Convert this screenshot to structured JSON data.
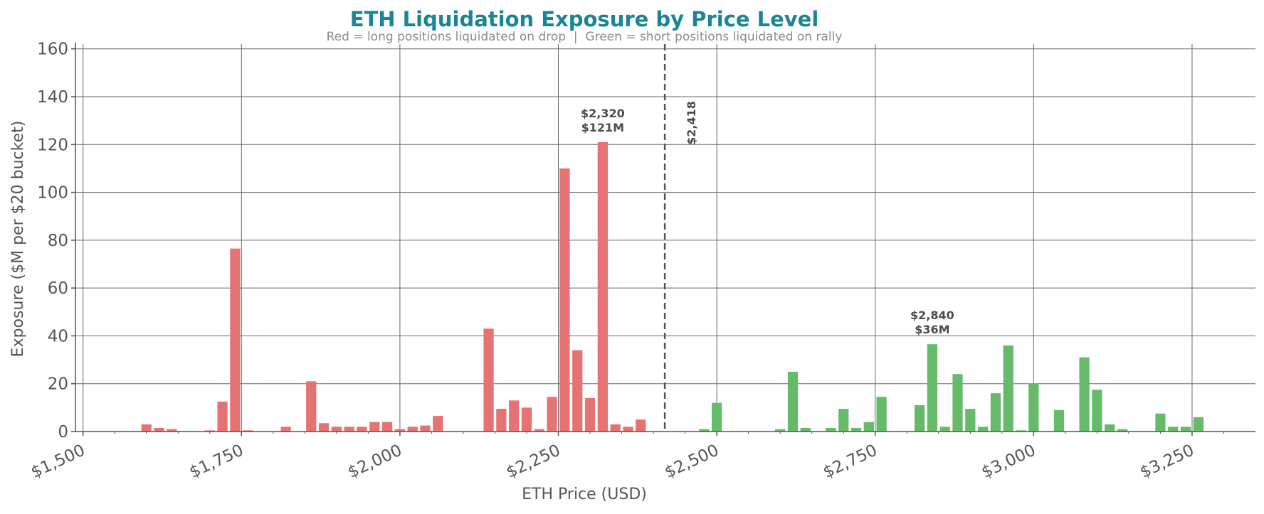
{
  "chart_data": {
    "type": "bar",
    "title": "ETH Liquidation Exposure by Price Level",
    "subtitle": "Red = long positions liquidated on drop  |  Green = short positions liquidated on rally",
    "xlabel": "ETH Price (USD)",
    "ylabel": "Exposure ($M per $20 bucket)",
    "xlim": [
      1488,
      3350
    ],
    "ylim": [
      0,
      162
    ],
    "x_ticks": [
      1500,
      1750,
      2000,
      2250,
      2500,
      2750,
      3000,
      3250
    ],
    "x_tick_labels": [
      "$1,500",
      "$1,750",
      "$2,000",
      "$2,250",
      "$2,500",
      "$2,750",
      "$3,000",
      "$3,250"
    ],
    "y_ticks": [
      0,
      20,
      40,
      60,
      80,
      100,
      120,
      140,
      160
    ],
    "y_tick_labels": [
      "0",
      "20",
      "40",
      "60",
      "80",
      "100",
      "120",
      "140",
      "160"
    ],
    "grid": true,
    "bucket_width": 20,
    "current_price": {
      "value": 2418,
      "label": "$2,418"
    },
    "colors": {
      "long": "#e57373",
      "short": "#66bb6a",
      "title": "#1a8596",
      "current_line": "#555555"
    },
    "series": [
      {
        "side": "long",
        "x": [
          1600,
          1620,
          1640,
          1700,
          1720,
          1740,
          1760,
          1820,
          1860,
          1880,
          1900,
          1920,
          1940,
          1960,
          1980,
          2000,
          2020,
          2040,
          2060,
          2140,
          2160,
          2180,
          2200,
          2220,
          2240,
          2260,
          2280,
          2300,
          2320,
          2340,
          2360,
          2380
        ],
        "values": [
          3,
          1.5,
          1,
          0.5,
          12.5,
          76.5,
          0.5,
          2,
          21,
          3.5,
          2,
          2,
          2,
          4,
          4,
          1,
          2,
          2.5,
          6.5,
          43,
          9.5,
          13,
          10,
          1,
          14.5,
          110,
          34,
          14,
          121,
          3,
          2,
          5
        ]
      },
      {
        "side": "short",
        "x": [
          2480,
          2500,
          2600,
          2620,
          2640,
          2680,
          2700,
          2720,
          2740,
          2760,
          2820,
          2840,
          2860,
          2880,
          2900,
          2920,
          2940,
          2960,
          2980,
          3000,
          3040,
          3080,
          3100,
          3120,
          3140,
          3200,
          3220,
          3240,
          3260
        ],
        "values": [
          1,
          12,
          1,
          25,
          1.5,
          1.5,
          9.5,
          1.5,
          4,
          14.5,
          11,
          36.5,
          2,
          24,
          9.5,
          2,
          16,
          36,
          0.5,
          20,
          9,
          31,
          17.5,
          3,
          1,
          7.5,
          2,
          2,
          6
        ]
      }
    ],
    "annotations": [
      {
        "x": 2320,
        "y": 121,
        "line1": "$2,320",
        "line2": "$121M"
      },
      {
        "x": 2840,
        "y": 36.5,
        "line1": "$2,840",
        "line2": "$36M"
      }
    ]
  }
}
